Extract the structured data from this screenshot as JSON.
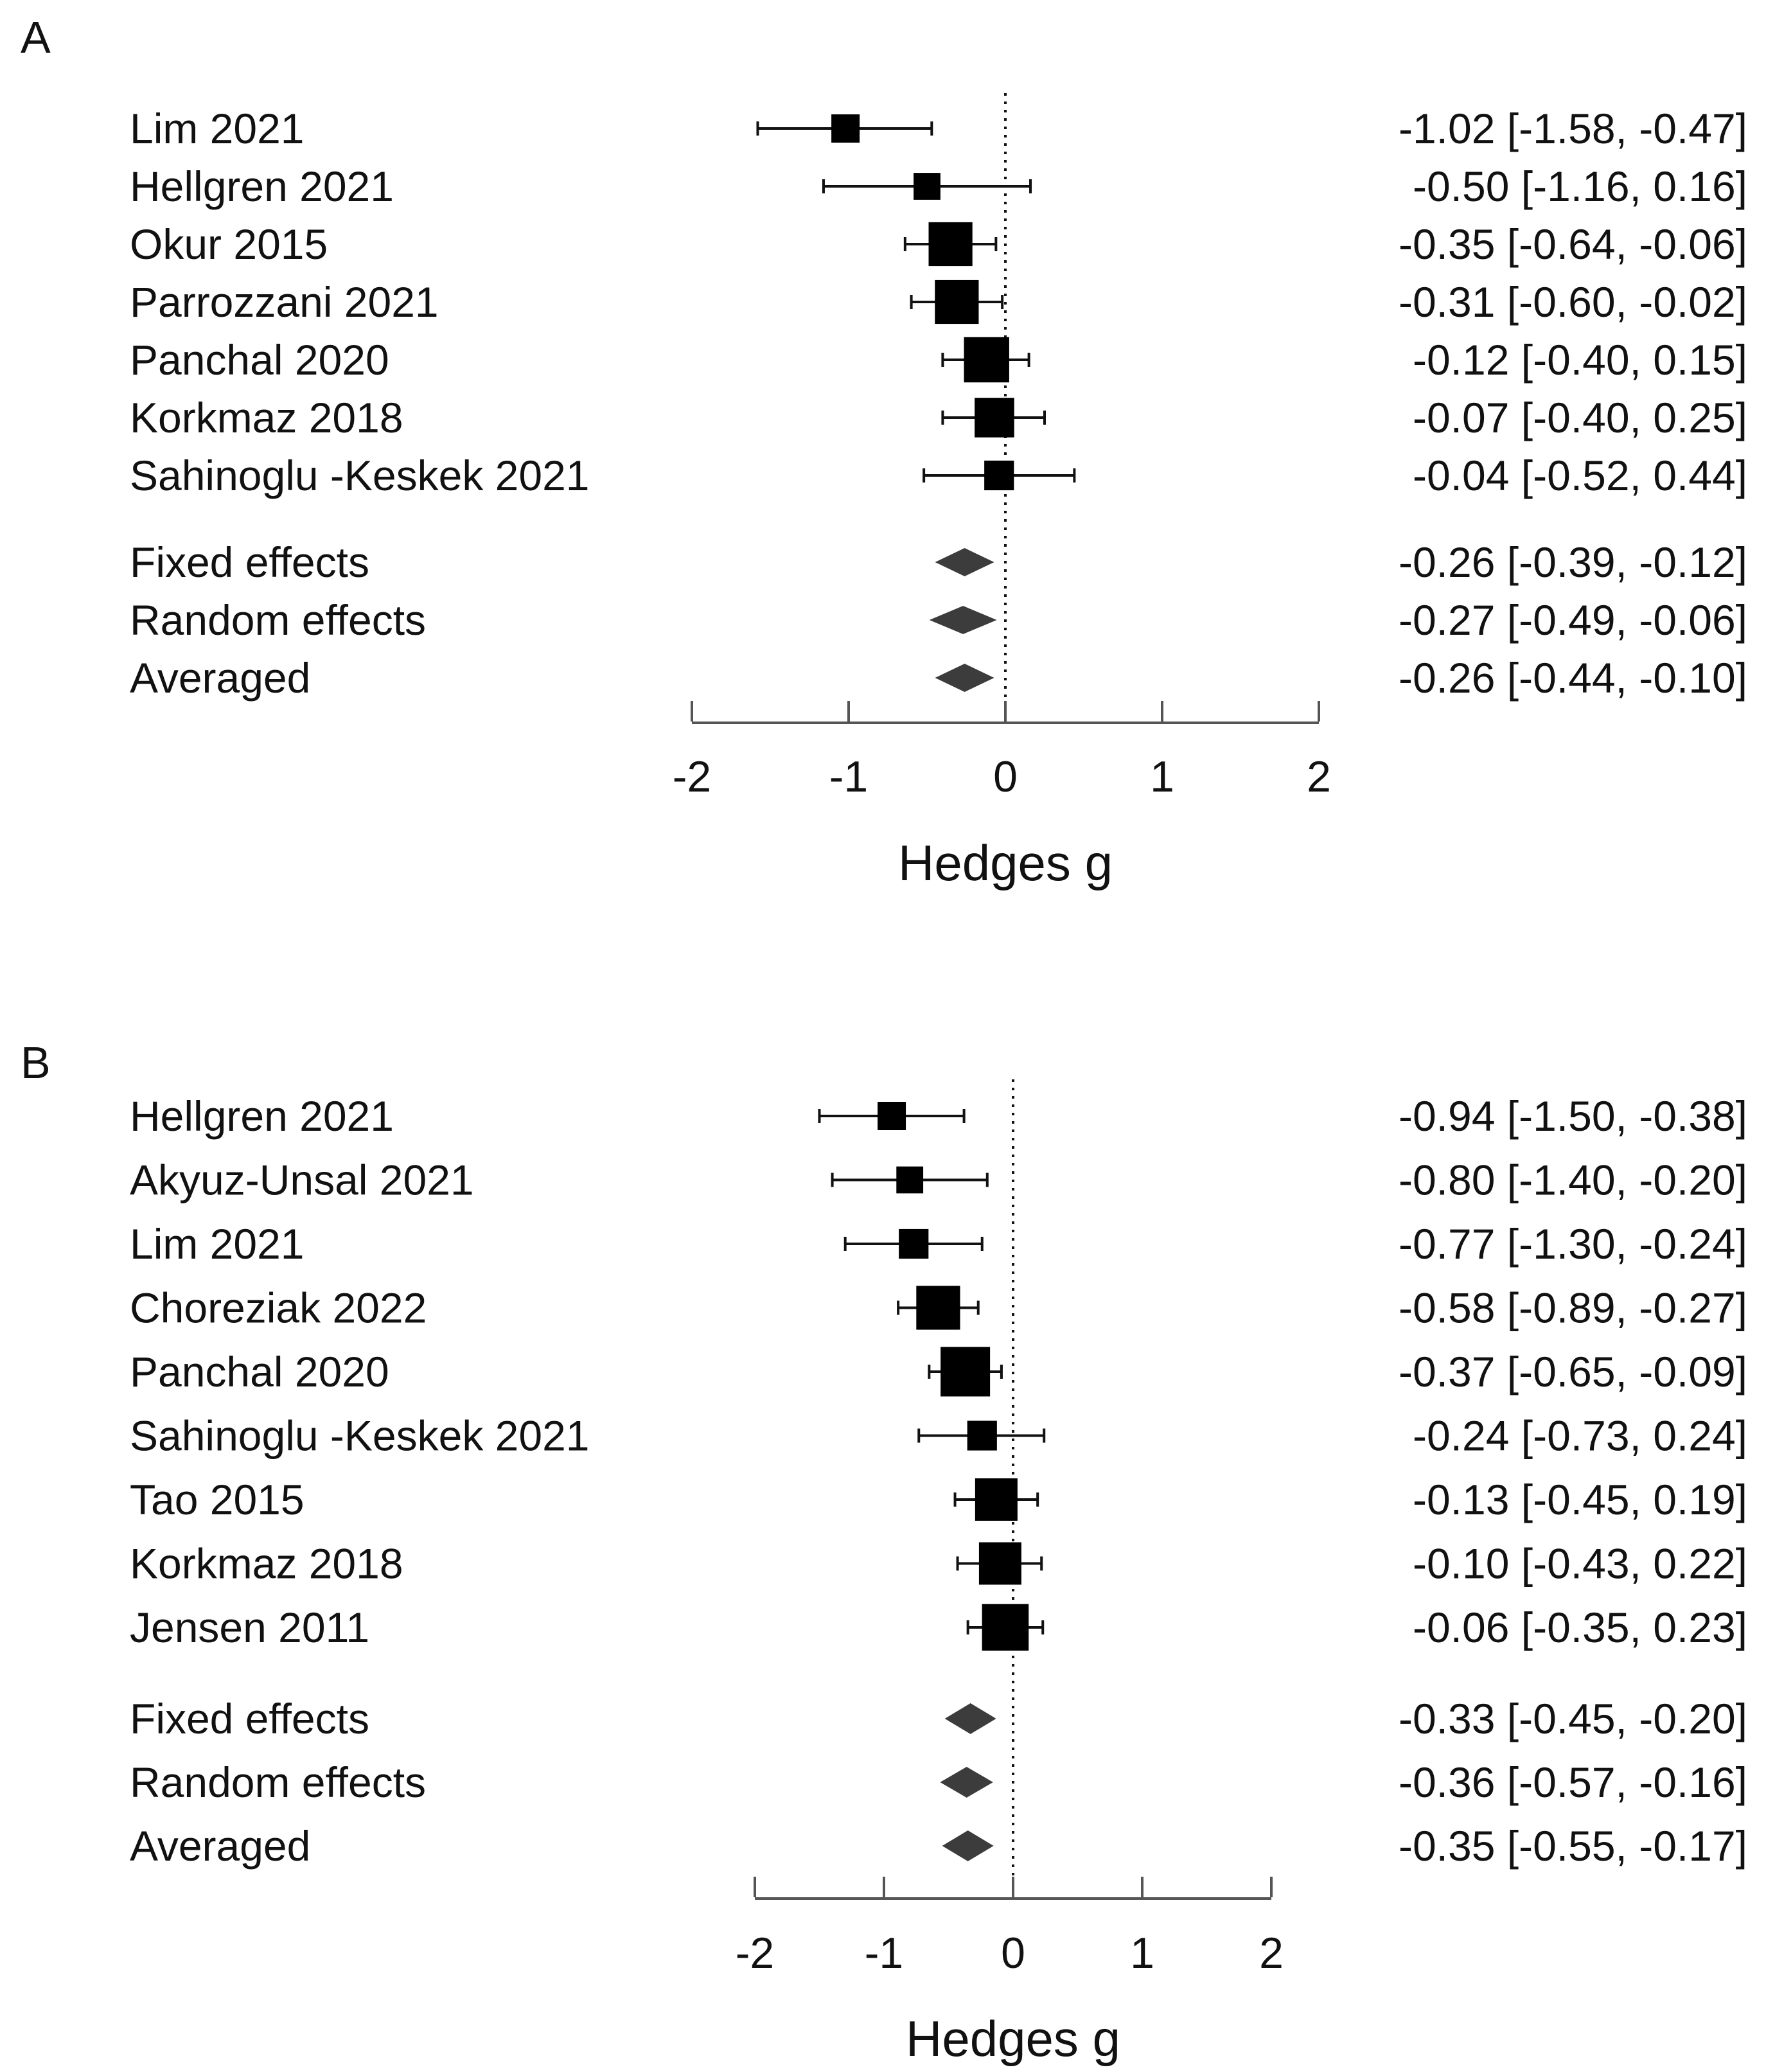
{
  "chart_data": [
    {
      "type": "forest",
      "panel_label": "A",
      "xlabel": "Hedges g",
      "xlim": [
        -2,
        2
      ],
      "ticks": [
        "-2",
        "-1",
        "0",
        "1",
        "2"
      ],
      "reference_line": 0,
      "studies": [
        {
          "name": "Lim 2021",
          "g": -1.02,
          "lo": -1.58,
          "hi": -0.47,
          "weight": 1,
          "ci_text": "-1.02 [-1.58, -0.47]"
        },
        {
          "name": "Hellgren 2021",
          "g": -0.5,
          "lo": -1.16,
          "hi": 0.16,
          "weight": 0.9,
          "ci_text": "-0.50 [-1.16, 0.16]"
        },
        {
          "name": "Okur 2015",
          "g": -0.35,
          "lo": -0.64,
          "hi": -0.06,
          "weight": 2.1,
          "ci_text": "-0.35 [-0.64, -0.06]"
        },
        {
          "name": "Parrozzani 2021",
          "g": -0.31,
          "lo": -0.6,
          "hi": -0.02,
          "weight": 2.1,
          "ci_text": "-0.31 [-0.60, -0.02]"
        },
        {
          "name": "Panchal 2020",
          "g": -0.12,
          "lo": -0.4,
          "hi": 0.15,
          "weight": 2.2,
          "ci_text": "-0.12 [-0.40, 0.15]"
        },
        {
          "name": "Korkmaz 2018",
          "g": -0.07,
          "lo": -0.4,
          "hi": 0.25,
          "weight": 1.8,
          "ci_text": "-0.07 [-0.40, 0.25]"
        },
        {
          "name": "Sahinoglu -Keskek 2021",
          "g": -0.04,
          "lo": -0.52,
          "hi": 0.44,
          "weight": 1.1,
          "ci_text": "-0.04 [-0.52, 0.44]"
        }
      ],
      "summaries": [
        {
          "name": "Fixed effects",
          "g": -0.26,
          "lo": -0.39,
          "hi": -0.12,
          "ci_text": "-0.26 [-0.39, -0.12]"
        },
        {
          "name": "Random effects",
          "g": -0.27,
          "lo": -0.49,
          "hi": -0.06,
          "ci_text": "-0.27 [-0.49, -0.06]"
        },
        {
          "name": "Averaged",
          "g": -0.26,
          "lo": -0.44,
          "hi": -0.1,
          "ci_text": "-0.26 [-0.44, -0.10]"
        }
      ]
    },
    {
      "type": "forest",
      "panel_label": "B",
      "xlabel": "Hedges g",
      "xlim": [
        -2,
        2
      ],
      "ticks": [
        "-2",
        "-1",
        "0",
        "1",
        "2"
      ],
      "reference_line": 0,
      "studies": [
        {
          "name": "Hellgren 2021",
          "g": -0.94,
          "lo": -1.5,
          "hi": -0.38,
          "weight": 1,
          "ci_text": "-0.94 [-1.50, -0.38]"
        },
        {
          "name": "Akyuz-Unsal 2021",
          "g": -0.8,
          "lo": -1.4,
          "hi": -0.2,
          "weight": 0.9,
          "ci_text": "-0.80 [-1.40, -0.20]"
        },
        {
          "name": "Lim 2021",
          "g": -0.77,
          "lo": -1.3,
          "hi": -0.24,
          "weight": 1.1,
          "ci_text": "-0.77 [-1.30, -0.24]"
        },
        {
          "name": "Choreziak 2022",
          "g": -0.58,
          "lo": -0.89,
          "hi": -0.27,
          "weight": 2.1,
          "ci_text": "-0.58 [-0.89, -0.27]"
        },
        {
          "name": "Panchal 2020",
          "g": -0.37,
          "lo": -0.65,
          "hi": -0.09,
          "weight": 2.5,
          "ci_text": "-0.37 [-0.65, -0.09]"
        },
        {
          "name": "Sahinoglu -Keskek 2021",
          "g": -0.24,
          "lo": -0.73,
          "hi": 0.24,
          "weight": 1.1,
          "ci_text": "-0.24 [-0.73, 0.24]"
        },
        {
          "name": "Tao 2015",
          "g": -0.13,
          "lo": -0.45,
          "hi": 0.19,
          "weight": 2.0,
          "ci_text": "-0.13 [-0.45, 0.19]"
        },
        {
          "name": "Korkmaz 2018",
          "g": -0.1,
          "lo": -0.43,
          "hi": 0.22,
          "weight": 2.0,
          "ci_text": "-0.10 [-0.43, 0.22]"
        },
        {
          "name": "Jensen 2011",
          "g": -0.06,
          "lo": -0.35,
          "hi": 0.23,
          "weight": 2.3,
          "ci_text": "-0.06 [-0.35, 0.23]"
        }
      ],
      "summaries": [
        {
          "name": "Fixed effects",
          "g": -0.33,
          "lo": -0.45,
          "hi": -0.2,
          "ci_text": "-0.33 [-0.45, -0.20]"
        },
        {
          "name": "Random effects",
          "g": -0.36,
          "lo": -0.57,
          "hi": -0.16,
          "ci_text": "-0.36 [-0.57, -0.16]"
        },
        {
          "name": "Averaged",
          "g": -0.35,
          "lo": -0.55,
          "hi": -0.17,
          "ci_text": "-0.35 [-0.55, -0.17]"
        }
      ]
    }
  ]
}
